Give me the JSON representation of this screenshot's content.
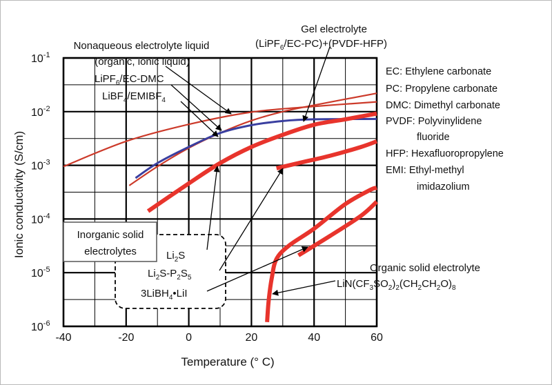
{
  "chart_data": {
    "type": "line",
    "xlabel": "Temperature (° C)",
    "ylabel": "Ionic conductivity (S/cm)",
    "xlim": [
      -40,
      60
    ],
    "ylim_log10": [
      -6,
      -1
    ],
    "y_scale": "log",
    "grid": true,
    "x_ticks": [
      "-40",
      "-20",
      "0",
      "20",
      "40",
      "60"
    ],
    "y_tick_exponents": [
      "-1",
      "-2",
      "-3",
      "-4",
      "-5",
      "-6"
    ],
    "y_tick_base": "10",
    "series": [
      {
        "color": "#cc3a2a",
        "width": "thin",
        "points": [
          [
            -40,
            0.00095
          ],
          [
            -20,
            0.0028
          ],
          [
            0,
            0.0058
          ],
          [
            20,
            0.0098
          ],
          [
            40,
            0.0125
          ],
          [
            60,
            0.0152
          ]
        ]
      },
      {
        "color": "#cc3a2a",
        "width": "thin",
        "points": [
          [
            -19,
            0.00042
          ],
          [
            -10,
            0.00095
          ],
          [
            0,
            0.0021
          ],
          [
            10,
            0.004
          ],
          [
            20,
            0.0068
          ],
          [
            30,
            0.01
          ],
          [
            40,
            0.0132
          ],
          [
            60,
            0.022
          ]
        ]
      },
      {
        "color": "#3a3fa0",
        "width": "medium",
        "points": [
          [
            -17,
            0.00058
          ],
          [
            -10,
            0.0011
          ],
          [
            0,
            0.0022
          ],
          [
            10,
            0.004
          ],
          [
            20,
            0.0056
          ],
          [
            30,
            0.0067
          ],
          [
            40,
            0.0072
          ],
          [
            60,
            0.0073
          ]
        ]
      },
      {
        "color": "#e8342c",
        "width": "thick",
        "points": [
          [
            -13,
            0.00014
          ],
          [
            0,
            0.00046
          ],
          [
            10,
            0.0011
          ],
          [
            20,
            0.0022
          ],
          [
            30,
            0.0037
          ],
          [
            40,
            0.0057
          ],
          [
            50,
            0.0072
          ],
          [
            60,
            0.0092
          ]
        ]
      },
      {
        "color": "#e8342c",
        "width": "thick",
        "points": [
          [
            28,
            0.00088
          ],
          [
            35,
            0.0011
          ],
          [
            45,
            0.0015
          ],
          [
            55,
            0.0022
          ],
          [
            60,
            0.0028
          ]
        ]
      },
      {
        "color": "#e8342c",
        "width": "thick",
        "points": [
          [
            25,
            1.2e-06
          ],
          [
            25.5,
            3e-06
          ],
          [
            26.5,
            8e-06
          ],
          [
            28,
            1.8e-05
          ],
          [
            32,
            3.2e-05
          ],
          [
            40,
            6.6e-05
          ],
          [
            50,
            0.00019
          ],
          [
            58,
            0.00035
          ],
          [
            60,
            0.00038
          ]
        ]
      },
      {
        "color": "#e8342c",
        "width": "thick",
        "points": [
          [
            35,
            2.1e-05
          ],
          [
            45,
            4.8e-05
          ],
          [
            55,
            0.000115
          ],
          [
            60,
            0.00021
          ]
        ]
      }
    ],
    "annotations": {
      "nonaqueous_1": "Nonaqueous electrolyte liquid",
      "nonaqueous_2": "(organic, ionic liquid)",
      "lipf6_a": "LiPF",
      "lipf6_b": "6",
      "lipf6_c": "/EC-DMC",
      "libf4_a": "LiBF",
      "libf4_b": "4",
      "libf4_c": "/EMIBF",
      "libf4_d": "4",
      "gel_1": "Gel electrolyte",
      "gel_2a": "(LiPF",
      "gel_2b": "6",
      "gel_2c": "/EC-PC)+(PVDF-HFP)",
      "inorganic_1": "Inorganic solid",
      "inorganic_2": "electrolytes",
      "li2s_a": "Li",
      "li2s_b": "2",
      "li2s_c": "S",
      "lips_a": "Li",
      "lips_b": "2",
      "lips_c": "S-P",
      "lips_d": "2",
      "lips_e": "S",
      "lips_f": "5",
      "libh_a": "3LiBH",
      "libh_b": "4",
      "libh_c": "•LiI",
      "organic_1": "Organic solid electrolyte",
      "organic_a": "LiN(CF",
      "organic_b": "3",
      "organic_c": "SO",
      "organic_d": "2",
      "organic_e": ")",
      "organic_f": "2",
      "organic_g": "(CH",
      "organic_h": "2",
      "organic_i": "CH",
      "organic_j": "2",
      "organic_k": "O)",
      "organic_l": "8"
    },
    "legend": [
      "EC: Ethylene carbonate",
      "PC: Propylene carbonate",
      "DMC: Dimethyl carbonate",
      "PVDF: Polyvinylidene",
      "fluoride",
      "HFP: Hexafluoropropylene",
      "EMI: Ethyl-methyl",
      "imidazolium"
    ]
  }
}
